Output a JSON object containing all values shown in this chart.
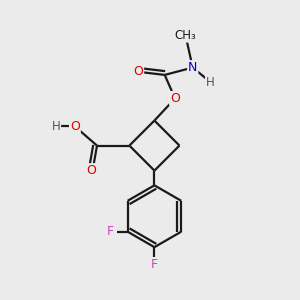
{
  "bg_color": "#ebebeb",
  "atom_colors": {
    "C": "#1a1a1a",
    "O": "#dd0000",
    "N": "#0000cc",
    "F": "#cc44bb",
    "H": "#555555"
  },
  "bond_color": "#1a1a1a",
  "bond_width": 1.6,
  "dbl_sep": 0.13
}
